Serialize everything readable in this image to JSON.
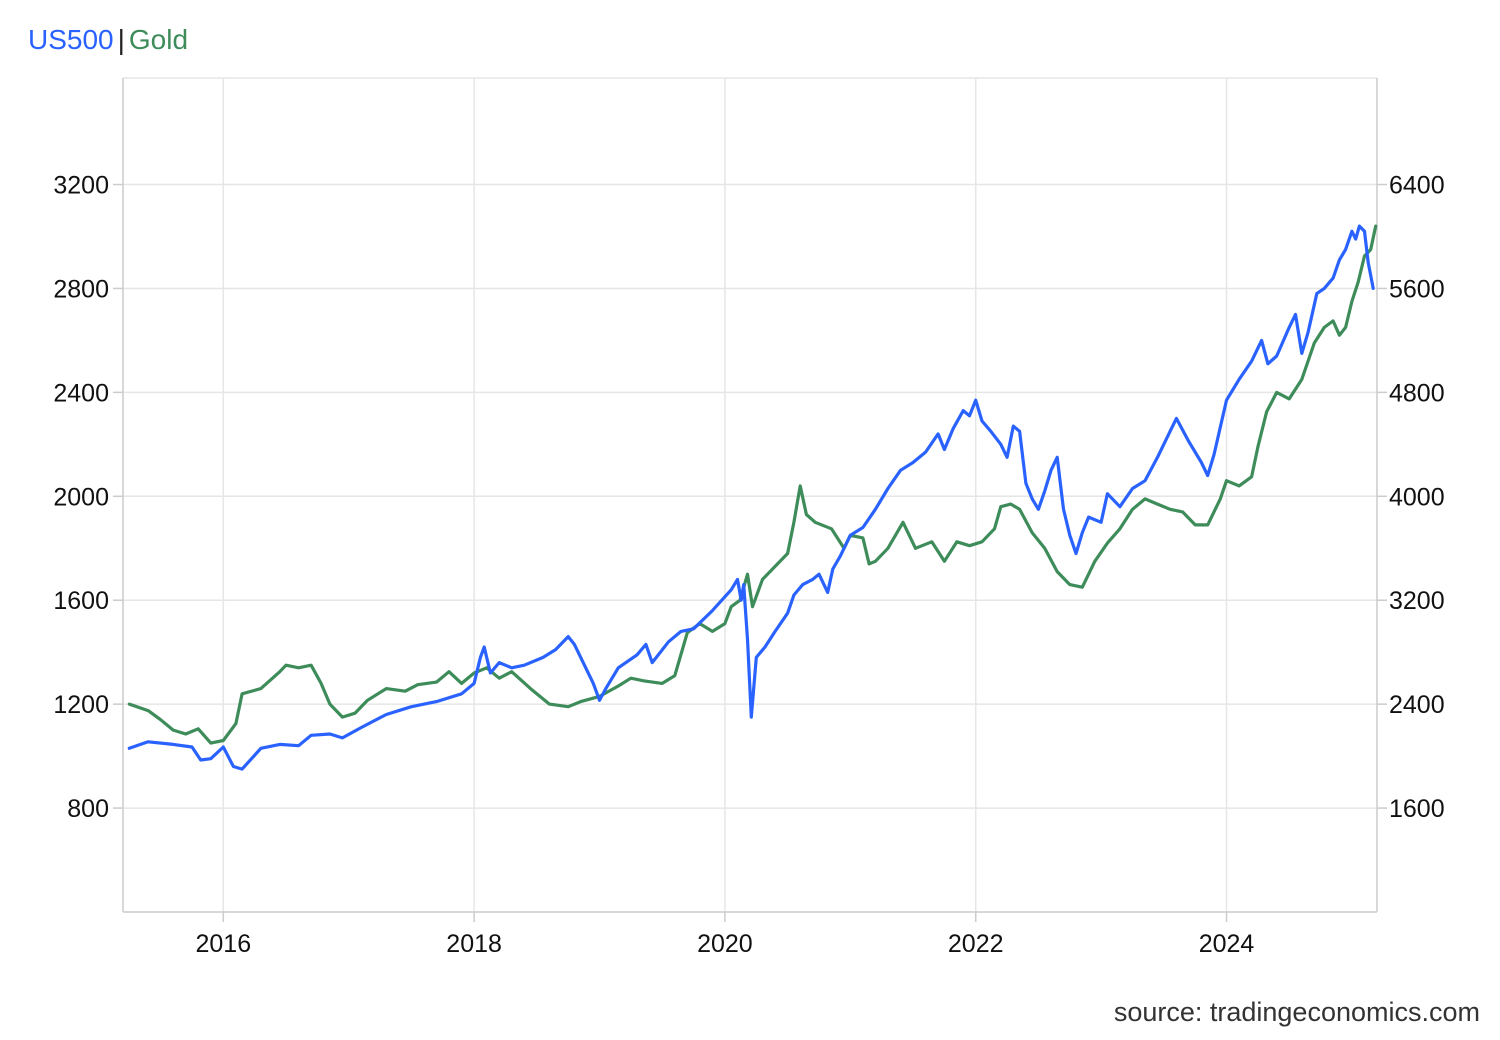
{
  "chart_data": {
    "type": "line",
    "title": "",
    "xlabel": "",
    "x_axis": {
      "range": [
        2015.2,
        2025.2
      ],
      "ticks": [
        2016,
        2018,
        2020,
        2022,
        2024
      ],
      "tick_labels": [
        "2016",
        "2018",
        "2020",
        "2022",
        "2024"
      ]
    },
    "y_axis_left": {
      "series": "US500",
      "range": [
        400,
        3610
      ],
      "ticks": [
        800,
        1200,
        1600,
        2000,
        2400,
        2800,
        3200
      ],
      "tick_labels": [
        "800",
        "1200",
        "1600",
        "2000",
        "2400",
        "2800",
        "3200"
      ]
    },
    "y_axis_right": {
      "series": "Gold",
      "range": [
        800,
        7220
      ],
      "ticks": [
        1600,
        2400,
        3200,
        4000,
        4800,
        5600,
        6400
      ],
      "tick_labels": [
        "1600",
        "2400",
        "3200",
        "4000",
        "4800",
        "5600",
        "6400"
      ]
    },
    "grid": true,
    "legend_position": "top-left",
    "series": [
      {
        "name": "US500",
        "color": "#2962ff",
        "axis": "left",
        "points": [
          [
            2015.25,
            1030
          ],
          [
            2015.4,
            1055
          ],
          [
            2015.6,
            1045
          ],
          [
            2015.75,
            1035
          ],
          [
            2015.82,
            985
          ],
          [
            2015.9,
            990
          ],
          [
            2016.0,
            1035
          ],
          [
            2016.08,
            960
          ],
          [
            2016.15,
            950
          ],
          [
            2016.3,
            1030
          ],
          [
            2016.45,
            1045
          ],
          [
            2016.6,
            1040
          ],
          [
            2016.7,
            1080
          ],
          [
            2016.85,
            1085
          ],
          [
            2016.95,
            1070
          ],
          [
            2017.1,
            1110
          ],
          [
            2017.3,
            1160
          ],
          [
            2017.5,
            1190
          ],
          [
            2017.7,
            1210
          ],
          [
            2017.9,
            1240
          ],
          [
            2018.0,
            1280
          ],
          [
            2018.05,
            1380
          ],
          [
            2018.08,
            1420
          ],
          [
            2018.13,
            1320
          ],
          [
            2018.2,
            1360
          ],
          [
            2018.3,
            1340
          ],
          [
            2018.4,
            1350
          ],
          [
            2018.55,
            1380
          ],
          [
            2018.65,
            1410
          ],
          [
            2018.75,
            1460
          ],
          [
            2018.8,
            1430
          ],
          [
            2018.85,
            1380
          ],
          [
            2018.9,
            1330
          ],
          [
            2018.95,
            1280
          ],
          [
            2019.0,
            1215
          ],
          [
            2019.05,
            1260
          ],
          [
            2019.15,
            1340
          ],
          [
            2019.3,
            1390
          ],
          [
            2019.37,
            1430
          ],
          [
            2019.42,
            1360
          ],
          [
            2019.55,
            1440
          ],
          [
            2019.65,
            1480
          ],
          [
            2019.75,
            1490
          ],
          [
            2019.9,
            1560
          ],
          [
            2020.05,
            1640
          ],
          [
            2020.1,
            1680
          ],
          [
            2020.13,
            1600
          ],
          [
            2020.15,
            1660
          ],
          [
            2020.18,
            1450
          ],
          [
            2020.21,
            1150
          ],
          [
            2020.25,
            1380
          ],
          [
            2020.32,
            1420
          ],
          [
            2020.4,
            1480
          ],
          [
            2020.5,
            1550
          ],
          [
            2020.55,
            1620
          ],
          [
            2020.62,
            1660
          ],
          [
            2020.7,
            1680
          ],
          [
            2020.75,
            1700
          ],
          [
            2020.82,
            1630
          ],
          [
            2020.86,
            1720
          ],
          [
            2020.92,
            1770
          ],
          [
            2021.0,
            1850
          ],
          [
            2021.1,
            1880
          ],
          [
            2021.2,
            1950
          ],
          [
            2021.3,
            2030
          ],
          [
            2021.4,
            2100
          ],
          [
            2021.5,
            2130
          ],
          [
            2021.6,
            2170
          ],
          [
            2021.7,
            2240
          ],
          [
            2021.75,
            2180
          ],
          [
            2021.82,
            2260
          ],
          [
            2021.9,
            2330
          ],
          [
            2021.95,
            2310
          ],
          [
            2022.0,
            2370
          ],
          [
            2022.05,
            2290
          ],
          [
            2022.12,
            2250
          ],
          [
            2022.2,
            2200
          ],
          [
            2022.25,
            2150
          ],
          [
            2022.3,
            2270
          ],
          [
            2022.35,
            2250
          ],
          [
            2022.4,
            2050
          ],
          [
            2022.45,
            1990
          ],
          [
            2022.5,
            1950
          ],
          [
            2022.55,
            2020
          ],
          [
            2022.6,
            2100
          ],
          [
            2022.65,
            2150
          ],
          [
            2022.7,
            1950
          ],
          [
            2022.75,
            1850
          ],
          [
            2022.8,
            1780
          ],
          [
            2022.85,
            1860
          ],
          [
            2022.9,
            1920
          ],
          [
            2023.0,
            1900
          ],
          [
            2023.05,
            2010
          ],
          [
            2023.15,
            1960
          ],
          [
            2023.25,
            2030
          ],
          [
            2023.35,
            2060
          ],
          [
            2023.45,
            2150
          ],
          [
            2023.55,
            2250
          ],
          [
            2023.6,
            2300
          ],
          [
            2023.7,
            2210
          ],
          [
            2023.8,
            2130
          ],
          [
            2023.85,
            2080
          ],
          [
            2023.9,
            2160
          ],
          [
            2024.0,
            2370
          ],
          [
            2024.1,
            2450
          ],
          [
            2024.2,
            2520
          ],
          [
            2024.28,
            2600
          ],
          [
            2024.33,
            2510
          ],
          [
            2024.4,
            2540
          ],
          [
            2024.5,
            2650
          ],
          [
            2024.55,
            2700
          ],
          [
            2024.6,
            2550
          ],
          [
            2024.65,
            2630
          ],
          [
            2024.72,
            2780
          ],
          [
            2024.78,
            2800
          ],
          [
            2024.85,
            2840
          ],
          [
            2024.9,
            2910
          ],
          [
            2024.95,
            2950
          ],
          [
            2025.0,
            3020
          ],
          [
            2025.03,
            2990
          ],
          [
            2025.06,
            3040
          ],
          [
            2025.1,
            3020
          ],
          [
            2025.13,
            2900
          ],
          [
            2025.17,
            2800
          ]
        ]
      },
      {
        "name": "Gold",
        "color": "#3d8c5a",
        "axis": "right",
        "points": [
          [
            2015.25,
            2400
          ],
          [
            2015.4,
            2350
          ],
          [
            2015.5,
            2280
          ],
          [
            2015.6,
            2200
          ],
          [
            2015.7,
            2170
          ],
          [
            2015.8,
            2210
          ],
          [
            2015.9,
            2100
          ],
          [
            2016.0,
            2120
          ],
          [
            2016.1,
            2250
          ],
          [
            2016.15,
            2480
          ],
          [
            2016.3,
            2520
          ],
          [
            2016.45,
            2650
          ],
          [
            2016.5,
            2700
          ],
          [
            2016.6,
            2680
          ],
          [
            2016.7,
            2700
          ],
          [
            2016.78,
            2560
          ],
          [
            2016.85,
            2400
          ],
          [
            2016.95,
            2300
          ],
          [
            2017.05,
            2330
          ],
          [
            2017.15,
            2430
          ],
          [
            2017.3,
            2520
          ],
          [
            2017.45,
            2500
          ],
          [
            2017.55,
            2550
          ],
          [
            2017.7,
            2570
          ],
          [
            2017.8,
            2650
          ],
          [
            2017.9,
            2560
          ],
          [
            2018.0,
            2640
          ],
          [
            2018.1,
            2680
          ],
          [
            2018.2,
            2600
          ],
          [
            2018.3,
            2650
          ],
          [
            2018.45,
            2520
          ],
          [
            2018.6,
            2400
          ],
          [
            2018.75,
            2380
          ],
          [
            2018.85,
            2420
          ],
          [
            2019.0,
            2460
          ],
          [
            2019.15,
            2540
          ],
          [
            2019.25,
            2600
          ],
          [
            2019.35,
            2580
          ],
          [
            2019.5,
            2560
          ],
          [
            2019.6,
            2620
          ],
          [
            2019.7,
            2950
          ],
          [
            2019.8,
            3020
          ],
          [
            2019.9,
            2960
          ],
          [
            2020.0,
            3020
          ],
          [
            2020.05,
            3150
          ],
          [
            2020.12,
            3200
          ],
          [
            2020.18,
            3400
          ],
          [
            2020.22,
            3150
          ],
          [
            2020.3,
            3360
          ],
          [
            2020.4,
            3460
          ],
          [
            2020.5,
            3560
          ],
          [
            2020.55,
            3800
          ],
          [
            2020.6,
            4080
          ],
          [
            2020.65,
            3860
          ],
          [
            2020.72,
            3800
          ],
          [
            2020.85,
            3750
          ],
          [
            2020.95,
            3600
          ],
          [
            2021.0,
            3700
          ],
          [
            2021.1,
            3680
          ],
          [
            2021.15,
            3480
          ],
          [
            2021.2,
            3500
          ],
          [
            2021.3,
            3600
          ],
          [
            2021.42,
            3800
          ],
          [
            2021.52,
            3600
          ],
          [
            2021.65,
            3650
          ],
          [
            2021.75,
            3500
          ],
          [
            2021.85,
            3650
          ],
          [
            2021.95,
            3620
          ],
          [
            2022.05,
            3650
          ],
          [
            2022.15,
            3750
          ],
          [
            2022.2,
            3920
          ],
          [
            2022.28,
            3940
          ],
          [
            2022.35,
            3900
          ],
          [
            2022.45,
            3720
          ],
          [
            2022.55,
            3600
          ],
          [
            2022.65,
            3420
          ],
          [
            2022.75,
            3320
          ],
          [
            2022.85,
            3300
          ],
          [
            2022.95,
            3500
          ],
          [
            2023.05,
            3640
          ],
          [
            2023.15,
            3750
          ],
          [
            2023.25,
            3900
          ],
          [
            2023.35,
            3980
          ],
          [
            2023.45,
            3940
          ],
          [
            2023.55,
            3900
          ],
          [
            2023.65,
            3880
          ],
          [
            2023.75,
            3780
          ],
          [
            2023.85,
            3780
          ],
          [
            2023.95,
            3980
          ],
          [
            2024.0,
            4120
          ],
          [
            2024.1,
            4080
          ],
          [
            2024.2,
            4150
          ],
          [
            2024.25,
            4380
          ],
          [
            2024.32,
            4650
          ],
          [
            2024.4,
            4800
          ],
          [
            2024.5,
            4750
          ],
          [
            2024.6,
            4900
          ],
          [
            2024.7,
            5180
          ],
          [
            2024.78,
            5300
          ],
          [
            2024.85,
            5350
          ],
          [
            2024.9,
            5240
          ],
          [
            2024.95,
            5300
          ],
          [
            2025.0,
            5500
          ],
          [
            2025.05,
            5650
          ],
          [
            2025.1,
            5850
          ],
          [
            2025.15,
            5900
          ],
          [
            2025.19,
            6080
          ]
        ]
      }
    ]
  },
  "legend": {
    "series_a": "US500",
    "separator": "|",
    "series_b": "Gold"
  },
  "source": "source: tradingeconomics.com"
}
